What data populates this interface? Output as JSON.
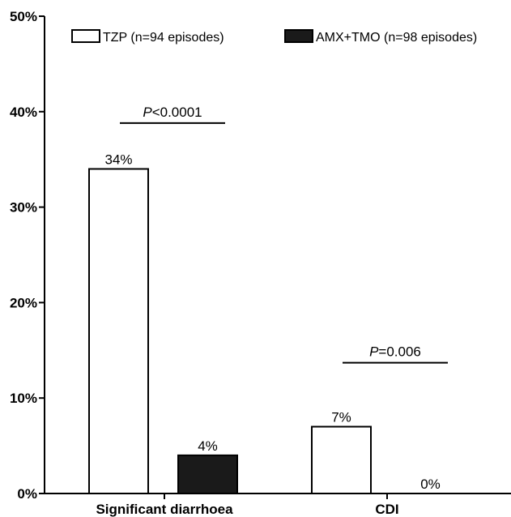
{
  "chart_data": {
    "type": "bar",
    "categories": [
      "Significant diarrhoea",
      "CDI"
    ],
    "series": [
      {
        "name": "TZP (n=94 episodes)",
        "values": [
          34,
          7
        ],
        "labels": [
          "34%",
          "7%"
        ],
        "fill": "#ffffff",
        "stroke": "#000000"
      },
      {
        "name": "AMX+TMO (n=98 episodes)",
        "values": [
          4,
          0
        ],
        "labels": [
          "4%",
          "0%"
        ],
        "fill": "#1a1a1a",
        "stroke": "#000000"
      }
    ],
    "yticks": [
      0,
      10,
      20,
      30,
      40,
      50
    ],
    "ytick_labels": [
      "0%",
      "10%",
      "20%",
      "30%",
      "40%",
      "50%"
    ],
    "ylim": [
      0,
      50
    ],
    "title": "",
    "xlabel": "",
    "ylabel": "",
    "legend_position": "top",
    "annotations": [
      {
        "category_index": 0,
        "italic": "P",
        "rest": "<0.0001",
        "y": 38.8
      },
      {
        "category_index": 1,
        "italic": "P",
        "rest": "=0.006",
        "y": 13.7
      }
    ]
  }
}
